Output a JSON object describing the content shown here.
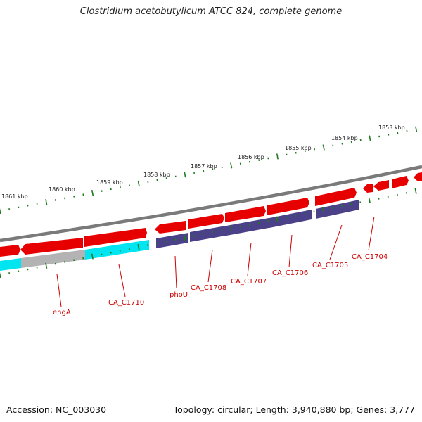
{
  "title": "Clostridium acetobutylicum ATCC 824, complete genome",
  "footer": {
    "accession": "Accession: NC_003030",
    "topology": "Topology: circular; Length: 3,940,880 bp; Genes: 3,777"
  },
  "colors": {
    "backbone": "#7a7a7a",
    "forward_gene": "#e60000",
    "reverse_gene": "#4a4189",
    "cyan_gene": "#00e5f0",
    "grey_gene": "#b3b3b3",
    "tick": "#1d7a1d",
    "gene_label": "#cc0000"
  },
  "kbp_labels": [
    "1861 kbp",
    "1860 kbp",
    "1859 kbp",
    "1858 kbp",
    "1857 kbp",
    "1856 kbp",
    "1855 kbp",
    "1854 kbp",
    "1853 kbp"
  ],
  "gene_labels": [
    "engA",
    "CA_C1710",
    "phoU",
    "CA_C1708",
    "CA_C1707",
    "CA_C1706",
    "CA_C1705",
    "CA_C1704"
  ]
}
